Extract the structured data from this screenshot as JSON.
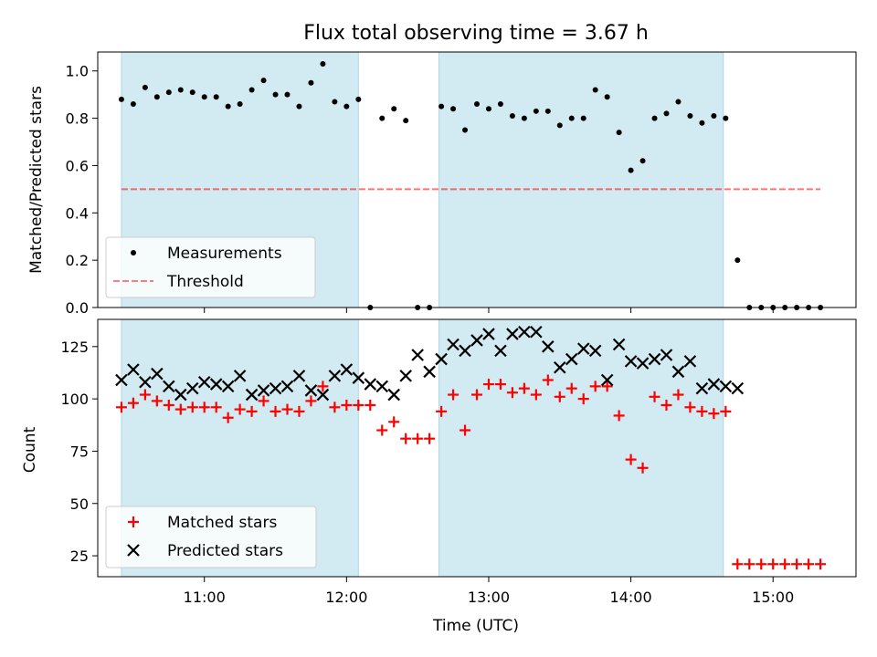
{
  "title": "Flux total observing time = 3.67 h",
  "colors": {
    "band": "#add8e6",
    "measurement": "#000000",
    "threshold": "#ff0000",
    "matched": "#ff0000",
    "predicted": "#000000"
  },
  "chart_data": [
    {
      "type": "scatter",
      "panel": "top",
      "ylabel": "Matched/Predicted stars",
      "xlim": [
        "10:15",
        "15:35"
      ],
      "ylim": [
        0.0,
        1.08
      ],
      "yticks": [
        "0.0",
        "0.2",
        "0.4",
        "0.6",
        "0.8",
        "1.0"
      ],
      "grid": false,
      "legend_position": "lower-left",
      "shaded_intervals": [
        [
          "10:25",
          "12:05"
        ],
        [
          "12:39",
          "14:39"
        ]
      ],
      "series": [
        {
          "name": "Measurements",
          "marker": "dot",
          "x": [
            "10:25",
            "10:30",
            "10:35",
            "10:40",
            "10:45",
            "10:50",
            "10:55",
            "11:00",
            "11:05",
            "11:10",
            "11:15",
            "11:20",
            "11:25",
            "11:30",
            "11:35",
            "11:40",
            "11:45",
            "11:50",
            "11:55",
            "12:00",
            "12:05",
            "12:10",
            "12:15",
            "12:20",
            "12:25",
            "12:30",
            "12:35",
            "12:40",
            "12:45",
            "12:50",
            "12:55",
            "13:00",
            "13:05",
            "13:10",
            "13:15",
            "13:20",
            "13:25",
            "13:30",
            "13:35",
            "13:40",
            "13:45",
            "13:50",
            "13:55",
            "14:00",
            "14:05",
            "14:10",
            "14:15",
            "14:20",
            "14:25",
            "14:30",
            "14:35",
            "14:40",
            "14:45",
            "14:50",
            "14:55",
            "15:00",
            "15:05",
            "15:10",
            "15:15",
            "15:20"
          ],
          "y": [
            0.88,
            0.86,
            0.93,
            0.89,
            0.91,
            0.92,
            0.91,
            0.89,
            0.89,
            0.85,
            0.86,
            0.92,
            0.96,
            0.9,
            0.9,
            0.85,
            0.95,
            1.03,
            0.87,
            0.85,
            0.88,
            0.0,
            0.8,
            0.84,
            0.79,
            0.0,
            0.0,
            0.85,
            0.84,
            0.75,
            0.86,
            0.84,
            0.86,
            0.81,
            0.8,
            0.83,
            0.83,
            0.77,
            0.8,
            0.8,
            0.92,
            0.89,
            0.74,
            0.58,
            0.62,
            0.8,
            0.82,
            0.87,
            0.81,
            0.78,
            0.81,
            0.8,
            0.2,
            0.0,
            0.0,
            0.0,
            0.0,
            0.0,
            0.0,
            0.0
          ]
        },
        {
          "name": "Threshold",
          "line": "dashed",
          "x": [
            "10:25",
            "15:20"
          ],
          "y": [
            0.5,
            0.5
          ]
        }
      ]
    },
    {
      "type": "scatter",
      "panel": "bottom",
      "ylabel": "Count",
      "xlabel": "Time (UTC)",
      "xlim": [
        "10:15",
        "15:35"
      ],
      "ylim": [
        15,
        138
      ],
      "xticks": [
        "11:00",
        "12:00",
        "13:00",
        "14:00",
        "15:00"
      ],
      "yticks": [
        "25",
        "50",
        "75",
        "100",
        "125"
      ],
      "grid": false,
      "legend_position": "lower-left",
      "shaded_intervals": [
        [
          "10:25",
          "12:05"
        ],
        [
          "12:39",
          "14:39"
        ]
      ],
      "series": [
        {
          "name": "Matched stars",
          "marker": "plus",
          "x": [
            "10:25",
            "10:30",
            "10:35",
            "10:40",
            "10:45",
            "10:50",
            "10:55",
            "11:00",
            "11:05",
            "11:10",
            "11:15",
            "11:20",
            "11:25",
            "11:30",
            "11:35",
            "11:40",
            "11:45",
            "11:50",
            "11:55",
            "12:00",
            "12:05",
            "12:10",
            "12:15",
            "12:20",
            "12:25",
            "12:30",
            "12:35",
            "12:40",
            "12:45",
            "12:50",
            "12:55",
            "13:00",
            "13:05",
            "13:10",
            "13:15",
            "13:20",
            "13:25",
            "13:30",
            "13:35",
            "13:40",
            "13:45",
            "13:50",
            "13:55",
            "14:00",
            "14:05",
            "14:10",
            "14:15",
            "14:20",
            "14:25",
            "14:30",
            "14:35",
            "14:40",
            "14:45",
            "14:50",
            "14:55",
            "15:00",
            "15:05",
            "15:10",
            "15:15",
            "15:20"
          ],
          "y": [
            96,
            98,
            102,
            99,
            97,
            95,
            96,
            96,
            96,
            91,
            95,
            94,
            99,
            94,
            95,
            94,
            99,
            106,
            96,
            97,
            97,
            97,
            85,
            89,
            81,
            81,
            81,
            94,
            102,
            85,
            102,
            107,
            107,
            103,
            105,
            102,
            109,
            101,
            105,
            100,
            106,
            106,
            92,
            71,
            67,
            101,
            97,
            102,
            96,
            94,
            93,
            94,
            21,
            21,
            21,
            21,
            21,
            21,
            21,
            21
          ]
        },
        {
          "name": "Predicted stars",
          "marker": "x",
          "x": [
            "10:25",
            "10:30",
            "10:35",
            "10:40",
            "10:45",
            "10:50",
            "10:55",
            "11:00",
            "11:05",
            "11:10",
            "11:15",
            "11:20",
            "11:25",
            "11:30",
            "11:35",
            "11:40",
            "11:45",
            "11:50",
            "11:55",
            "12:00",
            "12:05",
            "12:10",
            "12:15",
            "12:20",
            "12:25",
            "12:30",
            "12:35",
            "12:40",
            "12:45",
            "12:50",
            "12:55",
            "13:00",
            "13:05",
            "13:10",
            "13:15",
            "13:20",
            "13:25",
            "13:30",
            "13:35",
            "13:40",
            "13:45",
            "13:50",
            "13:55",
            "14:00",
            "14:05",
            "14:10",
            "14:15",
            "14:20",
            "14:25",
            "14:30",
            "14:35",
            "14:40",
            "14:45"
          ],
          "y": [
            109,
            114,
            108,
            112,
            106,
            102,
            105,
            108,
            107,
            106,
            111,
            102,
            104,
            105,
            106,
            111,
            104,
            102,
            111,
            114,
            110,
            107,
            106,
            102,
            111,
            121,
            113,
            119,
            126,
            123,
            128,
            131,
            123,
            131,
            132,
            132,
            125,
            115,
            119,
            124,
            123,
            109,
            126,
            118,
            117,
            119,
            121,
            113,
            118,
            105,
            107,
            106,
            105
          ]
        }
      ]
    }
  ]
}
